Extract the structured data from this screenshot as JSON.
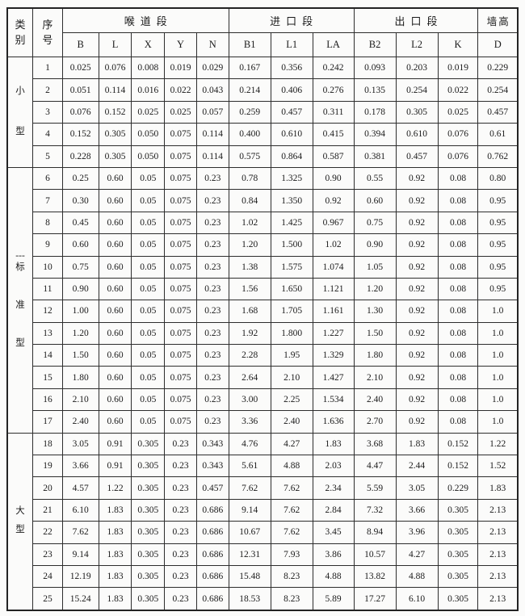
{
  "table": {
    "header": {
      "category": [
        "类",
        "别"
      ],
      "serial": [
        "序",
        "号"
      ],
      "throat_section": "喉道段",
      "inlet_section": "进口段",
      "outlet_section": "出口段",
      "wall_height": "墙高",
      "columns": [
        "B",
        "L",
        "X",
        "Y",
        "N",
        "B1",
        "L1",
        "LA",
        "B2",
        "L2",
        "K",
        "D"
      ]
    },
    "groups": [
      {
        "category_lines": [
          "小",
          "型"
        ],
        "rows": [
          {
            "no": "1",
            "values": [
              "0.025",
              "0.076",
              "0.008",
              "0.019",
              "0.029",
              "0.167",
              "0.356",
              "0.242",
              "0.093",
              "0.203",
              "0.019",
              "0.229"
            ]
          },
          {
            "no": "2",
            "values": [
              "0.051",
              "0.114",
              "0.016",
              "0.022",
              "0.043",
              "0.214",
              "0.406",
              "0.276",
              "0.135",
              "0.254",
              "0.022",
              "0.254"
            ]
          },
          {
            "no": "3",
            "values": [
              "0.076",
              "0.152",
              "0.025",
              "0.025",
              "0.057",
              "0.259",
              "0.457",
              "0.311",
              "0.178",
              "0.305",
              "0.025",
              "0.457"
            ]
          },
          {
            "no": "4",
            "values": [
              "0.152",
              "0.305",
              "0.050",
              "0.075",
              "0.114",
              "0.400",
              "0.610",
              "0.415",
              "0.394",
              "0.610",
              "0.076",
              "0.61"
            ]
          },
          {
            "no": "5",
            "values": [
              "0.228",
              "0.305",
              "0.050",
              "0.075",
              "0.114",
              "0.575",
              "0.864",
              "0.587",
              "0.381",
              "0.457",
              "0.076",
              "0.762"
            ]
          }
        ]
      },
      {
        "category_lines": [
          "---",
          "标",
          "准",
          "型"
        ],
        "rows": [
          {
            "no": "6",
            "values": [
              "0.25",
              "0.60",
              "0.05",
              "0.075",
              "0.23",
              "0.78",
              "1.325",
              "0.90",
              "0.55",
              "0.92",
              "0.08",
              "0.80"
            ]
          },
          {
            "no": "7",
            "values": [
              "0.30",
              "0.60",
              "0.05",
              "0.075",
              "0.23",
              "0.84",
              "1.350",
              "0.92",
              "0.60",
              "0.92",
              "0.08",
              "0.95"
            ]
          },
          {
            "no": "8",
            "values": [
              "0.45",
              "0.60",
              "0.05",
              "0.075",
              "0.23",
              "1.02",
              "1.425",
              "0.967",
              "0.75",
              "0.92",
              "0.08",
              "0.95"
            ]
          },
          {
            "no": "9",
            "values": [
              "0.60",
              "0.60",
              "0.05",
              "0.075",
              "0.23",
              "1.20",
              "1.500",
              "1.02",
              "0.90",
              "0.92",
              "0.08",
              "0.95"
            ]
          },
          {
            "no": "10",
            "values": [
              "0.75",
              "0.60",
              "0.05",
              "0.075",
              "0.23",
              "1.38",
              "1.575",
              "1.074",
              "1.05",
              "0.92",
              "0.08",
              "0.95"
            ]
          },
          {
            "no": "11",
            "values": [
              "0.90",
              "0.60",
              "0.05",
              "0.075",
              "0.23",
              "1.56",
              "1.650",
              "1.121",
              "1.20",
              "0.92",
              "0.08",
              "0.95"
            ]
          },
          {
            "no": "12",
            "values": [
              "1.00",
              "0.60",
              "0.05",
              "0.075",
              "0.23",
              "1.68",
              "1.705",
              "1.161",
              "1.30",
              "0.92",
              "0.08",
              "1.0"
            ]
          },
          {
            "no": "13",
            "values": [
              "1.20",
              "0.60",
              "0.05",
              "0.075",
              "0.23",
              "1.92",
              "1.800",
              "1.227",
              "1.50",
              "0.92",
              "0.08",
              "1.0"
            ]
          },
          {
            "no": "14",
            "values": [
              "1.50",
              "0.60",
              "0.05",
              "0.075",
              "0.23",
              "2.28",
              "1.95",
              "1.329",
              "1.80",
              "0.92",
              "0.08",
              "1.0"
            ]
          },
          {
            "no": "15",
            "values": [
              "1.80",
              "0.60",
              "0.05",
              "0.075",
              "0.23",
              "2.64",
              "2.10",
              "1.427",
              "2.10",
              "0.92",
              "0.08",
              "1.0"
            ]
          },
          {
            "no": "16",
            "values": [
              "2.10",
              "0.60",
              "0.05",
              "0.075",
              "0.23",
              "3.00",
              "2.25",
              "1.534",
              "2.40",
              "0.92",
              "0.08",
              "1.0"
            ]
          },
          {
            "no": "17",
            "values": [
              "2.40",
              "0.60",
              "0.05",
              "0.075",
              "0.23",
              "3.36",
              "2.40",
              "1.636",
              "2.70",
              "0.92",
              "0.08",
              "1.0"
            ]
          }
        ]
      },
      {
        "category_lines": [
          "大",
          "型"
        ],
        "rows": [
          {
            "no": "18",
            "values": [
              "3.05",
              "0.91",
              "0.305",
              "0.23",
              "0.343",
              "4.76",
              "4.27",
              "1.83",
              "3.68",
              "1.83",
              "0.152",
              "1.22"
            ]
          },
          {
            "no": "19",
            "values": [
              "3.66",
              "0.91",
              "0.305",
              "0.23",
              "0.343",
              "5.61",
              "4.88",
              "2.03",
              "4.47",
              "2.44",
              "0.152",
              "1.52"
            ]
          },
          {
            "no": "20",
            "values": [
              "4.57",
              "1.22",
              "0.305",
              "0.23",
              "0.457",
              "7.62",
              "7.62",
              "2.34",
              "5.59",
              "3.05",
              "0.229",
              "1.83"
            ]
          },
          {
            "no": "21",
            "values": [
              "6.10",
              "1.83",
              "0.305",
              "0.23",
              "0.686",
              "9.14",
              "7.62",
              "2.84",
              "7.32",
              "3.66",
              "0.305",
              "2.13"
            ]
          },
          {
            "no": "22",
            "values": [
              "7.62",
              "1.83",
              "0.305",
              "0.23",
              "0.686",
              "10.67",
              "7.62",
              "3.45",
              "8.94",
              "3.96",
              "0.305",
              "2.13"
            ]
          },
          {
            "no": "23",
            "values": [
              "9.14",
              "1.83",
              "0.305",
              "0.23",
              "0.686",
              "12.31",
              "7.93",
              "3.86",
              "10.57",
              "4.27",
              "0.305",
              "2.13"
            ]
          },
          {
            "no": "24",
            "values": [
              "12.19",
              "1.83",
              "0.305",
              "0.23",
              "0.686",
              "15.48",
              "8.23",
              "4.88",
              "13.82",
              "4.88",
              "0.305",
              "2.13"
            ]
          },
          {
            "no": "25",
            "values": [
              "15.24",
              "1.83",
              "0.305",
              "0.23",
              "0.686",
              "18.53",
              "8.23",
              "5.89",
              "17.27",
              "6.10",
              "0.305",
              "2.13"
            ]
          }
        ]
      }
    ]
  }
}
